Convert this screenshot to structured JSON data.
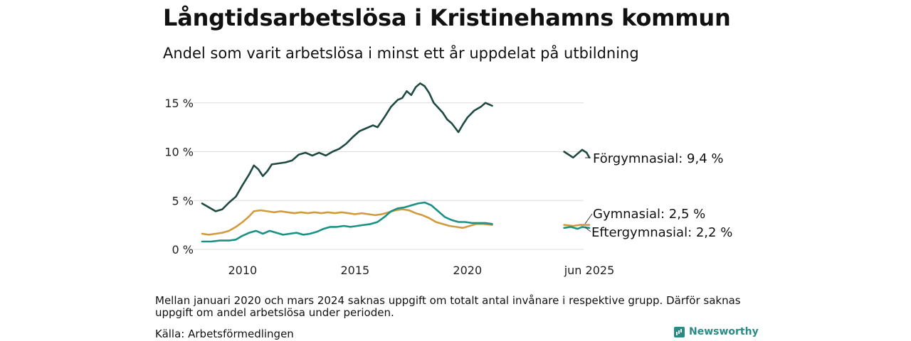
{
  "header": {
    "title": "Långtidsarbetslösa i Kristinehamns kommun",
    "subtitle": "Andel som varit arbetslösa i minst ett år uppdelat på utbildning"
  },
  "footer": {
    "note": "Mellan januari 2020 och mars 2024 saknas uppgift om totalt antal invånare i respektive grupp. Därför saknas uppgift om andel arbetslösa under perioden.",
    "source": "Källa: Arbetsförmedlingen",
    "brand": "Newsworthy",
    "brand_icon": "chart-logo-icon"
  },
  "colors": {
    "forgymnasial": "#1f4a42",
    "gymnasial": "#d29a3c",
    "eftergymnasial": "#1a9185",
    "grid": "#dddddd"
  },
  "chart_data": {
    "type": "line",
    "y_ticks": [
      {
        "value": 0,
        "label": "0 %"
      },
      {
        "value": 5,
        "label": "5 %"
      },
      {
        "value": 10,
        "label": "10 %"
      },
      {
        "value": 15,
        "label": "15 %"
      }
    ],
    "x_ticks": [
      {
        "value": 2010,
        "label": "2010"
      },
      {
        "value": 2015,
        "label": "2015"
      },
      {
        "value": 2020,
        "label": "2020"
      },
      {
        "value": 2025.42,
        "label": "jun 2025"
      }
    ],
    "ylim": [
      0,
      15
    ],
    "series": [
      {
        "key": "forgymnasial",
        "name": "Förgymnasial",
        "end_label": "Förgymnasial: 9,4 %",
        "segments": [
          [
            [
              2008.2,
              4.7
            ],
            [
              2008.5,
              4.3
            ],
            [
              2008.8,
              3.9
            ],
            [
              2009.1,
              4.1
            ],
            [
              2009.4,
              4.8
            ],
            [
              2009.7,
              5.4
            ],
            [
              2010.0,
              6.6
            ],
            [
              2010.3,
              7.7
            ],
            [
              2010.5,
              8.6
            ],
            [
              2010.7,
              8.2
            ],
            [
              2010.9,
              7.5
            ],
            [
              2011.1,
              8.0
            ],
            [
              2011.3,
              8.7
            ],
            [
              2011.6,
              8.8
            ],
            [
              2011.9,
              8.9
            ],
            [
              2012.2,
              9.1
            ],
            [
              2012.5,
              9.7
            ],
            [
              2012.8,
              9.9
            ],
            [
              2013.1,
              9.6
            ],
            [
              2013.4,
              9.9
            ],
            [
              2013.7,
              9.6
            ],
            [
              2014.0,
              10.0
            ],
            [
              2014.3,
              10.3
            ],
            [
              2014.6,
              10.8
            ],
            [
              2014.9,
              11.5
            ],
            [
              2015.2,
              12.1
            ],
            [
              2015.5,
              12.4
            ],
            [
              2015.8,
              12.7
            ],
            [
              2016.0,
              12.5
            ],
            [
              2016.3,
              13.5
            ],
            [
              2016.6,
              14.6
            ],
            [
              2016.9,
              15.3
            ],
            [
              2017.1,
              15.5
            ],
            [
              2017.3,
              16.2
            ],
            [
              2017.5,
              15.8
            ],
            [
              2017.7,
              16.6
            ],
            [
              2017.9,
              17.0
            ],
            [
              2018.1,
              16.7
            ],
            [
              2018.3,
              16.0
            ],
            [
              2018.5,
              15.0
            ],
            [
              2018.7,
              14.5
            ],
            [
              2018.9,
              14.0
            ],
            [
              2019.1,
              13.3
            ],
            [
              2019.3,
              12.9
            ],
            [
              2019.6,
              12.0
            ],
            [
              2019.8,
              12.8
            ],
            [
              2020.0,
              13.5
            ],
            [
              2020.3,
              14.2
            ],
            [
              2020.6,
              14.6
            ],
            [
              2020.8,
              15.0
            ],
            [
              2021.0,
              14.8
            ],
            [
              2021.1,
              14.7
            ]
          ],
          [
            [
              2024.3,
              10.0
            ],
            [
              2024.5,
              9.7
            ],
            [
              2024.7,
              9.4
            ],
            [
              2024.9,
              9.8
            ],
            [
              2025.1,
              10.2
            ],
            [
              2025.3,
              9.9
            ],
            [
              2025.42,
              9.4
            ]
          ]
        ]
      },
      {
        "key": "gymnasial",
        "name": "Gymnasial",
        "end_label": "Gymnasial: 2,5 %",
        "segments": [
          [
            [
              2008.2,
              1.6
            ],
            [
              2008.5,
              1.5
            ],
            [
              2008.8,
              1.6
            ],
            [
              2009.1,
              1.7
            ],
            [
              2009.4,
              1.9
            ],
            [
              2009.7,
              2.3
            ],
            [
              2010.0,
              2.8
            ],
            [
              2010.3,
              3.4
            ],
            [
              2010.5,
              3.9
            ],
            [
              2010.8,
              4.0
            ],
            [
              2011.1,
              3.9
            ],
            [
              2011.4,
              3.8
            ],
            [
              2011.7,
              3.9
            ],
            [
              2012.0,
              3.8
            ],
            [
              2012.3,
              3.7
            ],
            [
              2012.6,
              3.8
            ],
            [
              2012.9,
              3.7
            ],
            [
              2013.2,
              3.8
            ],
            [
              2013.5,
              3.7
            ],
            [
              2013.8,
              3.8
            ],
            [
              2014.1,
              3.7
            ],
            [
              2014.4,
              3.8
            ],
            [
              2014.7,
              3.7
            ],
            [
              2015.0,
              3.6
            ],
            [
              2015.3,
              3.7
            ],
            [
              2015.6,
              3.6
            ],
            [
              2015.9,
              3.5
            ],
            [
              2016.2,
              3.6
            ],
            [
              2016.5,
              3.8
            ],
            [
              2016.8,
              4.0
            ],
            [
              2017.1,
              4.1
            ],
            [
              2017.4,
              4.0
            ],
            [
              2017.7,
              3.7
            ],
            [
              2018.0,
              3.5
            ],
            [
              2018.3,
              3.2
            ],
            [
              2018.6,
              2.8
            ],
            [
              2018.9,
              2.6
            ],
            [
              2019.2,
              2.4
            ],
            [
              2019.5,
              2.3
            ],
            [
              2019.8,
              2.2
            ],
            [
              2020.1,
              2.4
            ],
            [
              2020.4,
              2.6
            ],
            [
              2020.7,
              2.6
            ],
            [
              2021.1,
              2.5
            ]
          ],
          [
            [
              2024.3,
              2.5
            ],
            [
              2024.7,
              2.4
            ],
            [
              2025.0,
              2.5
            ],
            [
              2025.42,
              2.5
            ]
          ]
        ]
      },
      {
        "key": "eftergymnasial",
        "name": "Eftergymnasial",
        "end_label": "Eftergymnasial: 2,2 %",
        "segments": [
          [
            [
              2008.2,
              0.8
            ],
            [
              2008.6,
              0.8
            ],
            [
              2009.0,
              0.9
            ],
            [
              2009.4,
              0.9
            ],
            [
              2009.7,
              1.0
            ],
            [
              2010.0,
              1.4
            ],
            [
              2010.3,
              1.7
            ],
            [
              2010.6,
              1.9
            ],
            [
              2010.9,
              1.6
            ],
            [
              2011.2,
              1.9
            ],
            [
              2011.5,
              1.7
            ],
            [
              2011.8,
              1.5
            ],
            [
              2012.1,
              1.6
            ],
            [
              2012.4,
              1.7
            ],
            [
              2012.7,
              1.5
            ],
            [
              2013.0,
              1.6
            ],
            [
              2013.3,
              1.8
            ],
            [
              2013.6,
              2.1
            ],
            [
              2013.9,
              2.3
            ],
            [
              2014.2,
              2.3
            ],
            [
              2014.5,
              2.4
            ],
            [
              2014.8,
              2.3
            ],
            [
              2015.1,
              2.4
            ],
            [
              2015.4,
              2.5
            ],
            [
              2015.7,
              2.6
            ],
            [
              2016.0,
              2.8
            ],
            [
              2016.3,
              3.3
            ],
            [
              2016.6,
              3.9
            ],
            [
              2016.9,
              4.2
            ],
            [
              2017.2,
              4.3
            ],
            [
              2017.5,
              4.5
            ],
            [
              2017.8,
              4.7
            ],
            [
              2018.1,
              4.8
            ],
            [
              2018.4,
              4.5
            ],
            [
              2018.7,
              3.9
            ],
            [
              2019.0,
              3.3
            ],
            [
              2019.3,
              3.0
            ],
            [
              2019.6,
              2.8
            ],
            [
              2019.9,
              2.8
            ],
            [
              2020.2,
              2.7
            ],
            [
              2020.5,
              2.7
            ],
            [
              2020.8,
              2.7
            ],
            [
              2021.1,
              2.6
            ]
          ],
          [
            [
              2024.3,
              2.2
            ],
            [
              2024.6,
              2.3
            ],
            [
              2024.9,
              2.1
            ],
            [
              2025.1,
              2.3
            ],
            [
              2025.42,
              2.2
            ]
          ]
        ]
      }
    ],
    "legend": "direct labels at line ends",
    "grid": true
  }
}
